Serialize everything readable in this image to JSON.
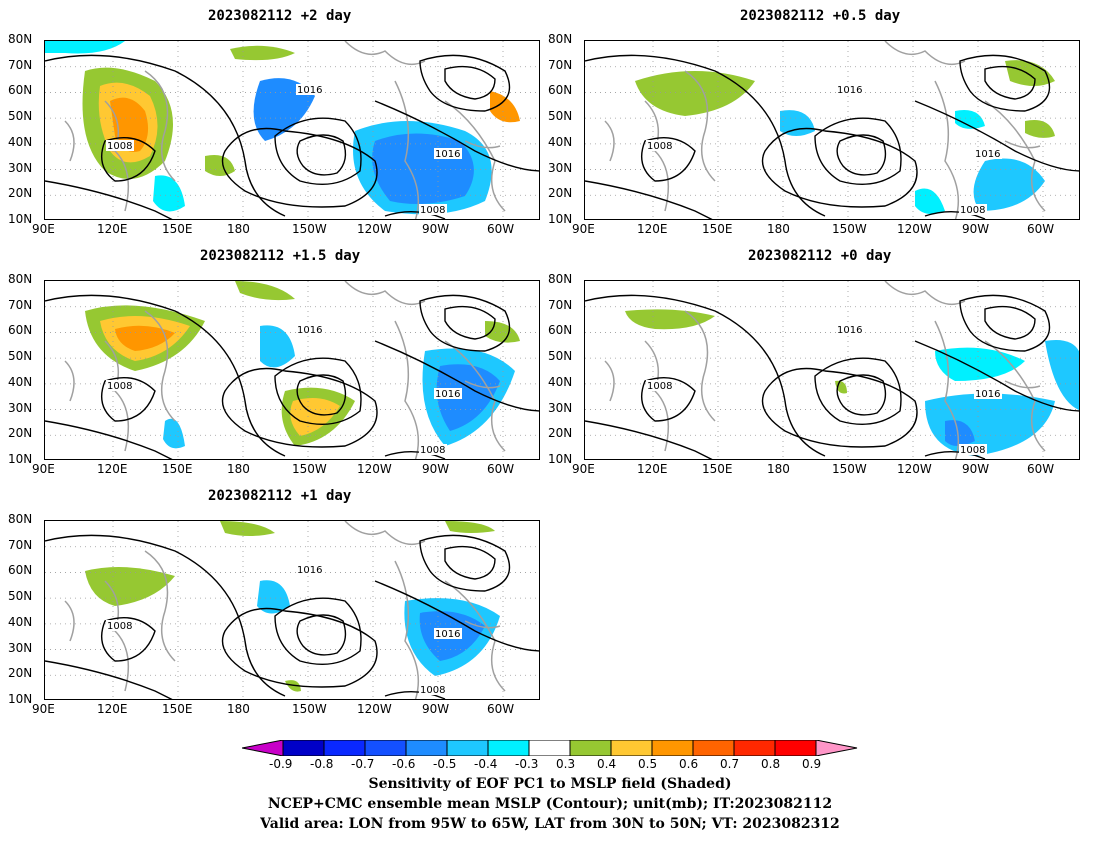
{
  "panels": [
    {
      "title": "2023082112 +2 day",
      "label_1008": "1008",
      "label_1016a": "1016",
      "label_1016b": "1016",
      "label_1008b": "1008"
    },
    {
      "title": "2023082112 +0.5 day",
      "label_1008": "1008",
      "label_1016a": "1016",
      "label_1016b": "1016",
      "label_1008b": "1008"
    },
    {
      "title": "2023082112 +1.5 day",
      "label_1008": "1008",
      "label_1016a": "1016",
      "label_1016b": "1016",
      "label_1008b": "1008"
    },
    {
      "title": "2023082112 +0 day",
      "label_1008": "1008",
      "label_1016a": "1016",
      "label_1016b": "1016",
      "label_1008b": "1008"
    },
    {
      "title": "2023082112 +1 day",
      "label_1008": "1008",
      "label_1016a": "1016",
      "label_1016b": "1016",
      "label_1008b": "1008"
    }
  ],
  "axes": {
    "lat_labels": [
      "80N",
      "70N",
      "60N",
      "50N",
      "40N",
      "30N",
      "20N",
      "10N"
    ],
    "lon_labels": [
      "90E",
      "120E",
      "150E",
      "180",
      "150W",
      "120W",
      "90W",
      "60W"
    ]
  },
  "colorbar": {
    "labels": [
      "-0.9",
      "-0.8",
      "-0.7",
      "-0.6",
      "-0.5",
      "-0.4",
      "-0.3",
      "0.3",
      "0.4",
      "0.5",
      "0.6",
      "0.7",
      "0.8",
      "0.9"
    ],
    "colors": [
      "#c800c8",
      "#0000c8",
      "#0a28ff",
      "#1450ff",
      "#1e8cff",
      "#1ec8ff",
      "#00f0ff",
      "#ffffff",
      "#96c832",
      "#ffc832",
      "#ff9600",
      "#ff6400",
      "#ff2800",
      "#ff0000",
      "#ff96c8"
    ]
  },
  "caption": {
    "line1": "Sensitivity of EOF PC1 to MSLP field (Shaded)",
    "line2": "NCEP+CMC ensemble mean MSLP (Contour); unit(mb); IT:2023082112",
    "line3": "Valid area: LON from 95W to 65W, LAT from 30N to 50N; VT: 2023082312"
  }
}
